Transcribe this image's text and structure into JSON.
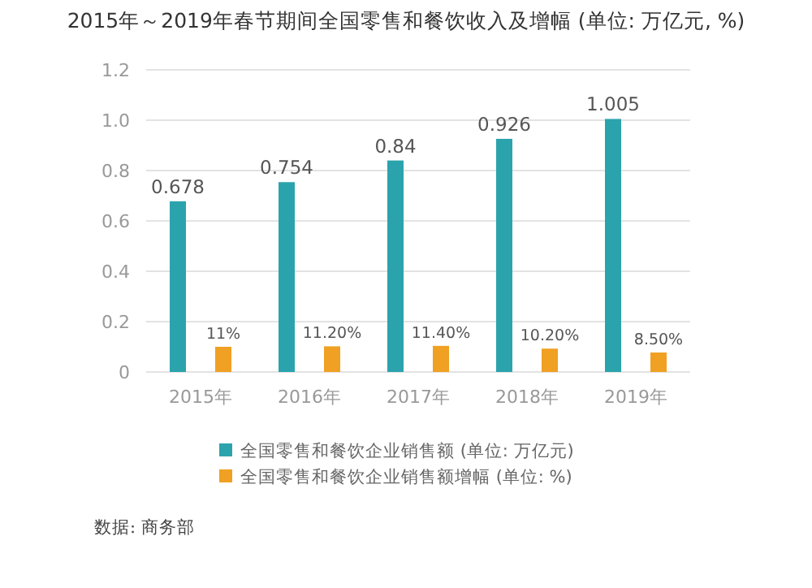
{
  "chart_data": {
    "type": "bar",
    "title": "2015年～2019年春节期间全国零售和餐饮收入及增幅 (单位: 万亿元, %)",
    "categories": [
      "2015年",
      "2016年",
      "2017年",
      "2018年",
      "2019年"
    ],
    "series": [
      {
        "name": "全国零售和餐饮企业销售额 (单位: 万亿元)",
        "color": "#2ba3ad",
        "values": [
          0.678,
          0.754,
          0.84,
          0.926,
          1.005
        ],
        "value_labels": [
          "0.678",
          "0.754",
          "0.84",
          "0.926",
          "1.005"
        ]
      },
      {
        "name": "全国零售和餐饮企业销售额增幅 (单位: %)",
        "color": "#f0a023",
        "axis": "y2",
        "values": [
          11,
          11.2,
          11.4,
          10.2,
          8.5
        ],
        "value_labels": [
          "11%",
          "11.20%",
          "11.40%",
          "10.20%",
          "8.50%"
        ]
      }
    ],
    "ylim": [
      0,
      1.2
    ],
    "yticks": [
      0,
      0.2,
      0.4,
      0.6,
      0.8,
      {
        "value": 1,
        "label": "1.0"
      },
      1.2
    ],
    "y2lim": [
      0,
      132
    ],
    "grid": "y",
    "legend": "bottom",
    "annotations": [
      "数据: 商务部"
    ]
  }
}
